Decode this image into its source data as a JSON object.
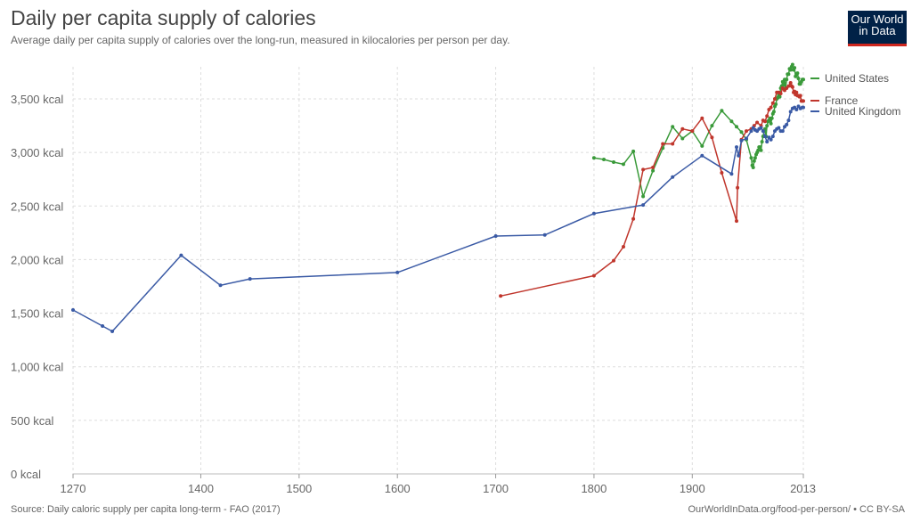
{
  "header": {
    "title": "Daily per capita supply of calories",
    "subtitle": "Average daily per capita supply of calories over the long-run, measured in kilocalories per person per day."
  },
  "logo": {
    "line1": "Our World",
    "line2": "in Data"
  },
  "footer": {
    "source": "Source: Daily caloric supply per capita long-term - FAO (2017)",
    "url": "OurWorldInData.org/food-per-person/ • CC BY-SA"
  },
  "chart_data": {
    "type": "line",
    "title": "Daily per capita supply of calories",
    "xlim": [
      1270,
      2013
    ],
    "ylim": [
      0,
      3800
    ],
    "x_ticks": [
      1270,
      1400,
      1500,
      1600,
      1700,
      1800,
      1900,
      2013
    ],
    "y_ticks": [
      0,
      500,
      1000,
      1500,
      2000,
      2500,
      3000,
      3500
    ],
    "y_tick_labels": [
      "0 kcal",
      "500 kcal",
      "1,000 kcal",
      "1,500 kcal",
      "2,000 kcal",
      "2,500 kcal",
      "3,000 kcal",
      "3,500 kcal"
    ],
    "grid": true,
    "legend_position": "right",
    "series": [
      {
        "name": "United States",
        "color": "#3a9a3a",
        "points": [
          [
            1800,
            2950
          ],
          [
            1810,
            2935
          ],
          [
            1820,
            2910
          ],
          [
            1830,
            2890
          ],
          [
            1840,
            3010
          ],
          [
            1850,
            2590
          ],
          [
            1860,
            2830
          ],
          [
            1870,
            3040
          ],
          [
            1880,
            3240
          ],
          [
            1890,
            3130
          ],
          [
            1900,
            3200
          ],
          [
            1910,
            3060
          ],
          [
            1920,
            3250
          ],
          [
            1930,
            3390
          ],
          [
            1940,
            3290
          ],
          [
            1945,
            3240
          ],
          [
            1950,
            3190
          ],
          [
            1955,
            3120
          ],
          [
            1960,
            2950
          ],
          [
            1961,
            2880
          ],
          [
            1962,
            2860
          ],
          [
            1963,
            2920
          ],
          [
            1964,
            2950
          ],
          [
            1965,
            2980
          ],
          [
            1966,
            3000
          ],
          [
            1967,
            3020
          ],
          [
            1968,
            3050
          ],
          [
            1969,
            3050
          ],
          [
            1970,
            3020
          ],
          [
            1971,
            3100
          ],
          [
            1972,
            3150
          ],
          [
            1973,
            3200
          ],
          [
            1974,
            3220
          ],
          [
            1975,
            3150
          ],
          [
            1976,
            3250
          ],
          [
            1977,
            3290
          ],
          [
            1978,
            3300
          ],
          [
            1979,
            3320
          ],
          [
            1980,
            3270
          ],
          [
            1981,
            3320
          ],
          [
            1982,
            3360
          ],
          [
            1983,
            3380
          ],
          [
            1984,
            3430
          ],
          [
            1985,
            3450
          ],
          [
            1986,
            3500
          ],
          [
            1987,
            3510
          ],
          [
            1988,
            3530
          ],
          [
            1989,
            3520
          ],
          [
            1990,
            3600
          ],
          [
            1991,
            3620
          ],
          [
            1992,
            3660
          ],
          [
            1993,
            3630
          ],
          [
            1994,
            3680
          ],
          [
            1995,
            3600
          ],
          [
            1996,
            3680
          ],
          [
            1997,
            3730
          ],
          [
            1998,
            3730
          ],
          [
            1999,
            3780
          ],
          [
            2000,
            3770
          ],
          [
            2001,
            3800
          ],
          [
            2002,
            3820
          ],
          [
            2003,
            3770
          ],
          [
            2004,
            3790
          ],
          [
            2005,
            3710
          ],
          [
            2006,
            3730
          ],
          [
            2007,
            3740
          ],
          [
            2008,
            3690
          ],
          [
            2009,
            3640
          ],
          [
            2010,
            3640
          ],
          [
            2011,
            3660
          ],
          [
            2012,
            3680
          ],
          [
            2013,
            3680
          ]
        ]
      },
      {
        "name": "France",
        "color": "#c0362c",
        "points": [
          [
            1705,
            1660
          ],
          [
            1800,
            1850
          ],
          [
            1820,
            1990
          ],
          [
            1830,
            2120
          ],
          [
            1840,
            2380
          ],
          [
            1850,
            2840
          ],
          [
            1860,
            2860
          ],
          [
            1870,
            3080
          ],
          [
            1880,
            3080
          ],
          [
            1890,
            3220
          ],
          [
            1900,
            3200
          ],
          [
            1910,
            3320
          ],
          [
            1920,
            3140
          ],
          [
            1930,
            2810
          ],
          [
            1945,
            2360
          ],
          [
            1946,
            2670
          ],
          [
            1950,
            3120
          ],
          [
            1955,
            3200
          ],
          [
            1960,
            3220
          ],
          [
            1963,
            3250
          ],
          [
            1966,
            3280
          ],
          [
            1970,
            3250
          ],
          [
            1972,
            3300
          ],
          [
            1974,
            3290
          ],
          [
            1976,
            3340
          ],
          [
            1978,
            3400
          ],
          [
            1980,
            3420
          ],
          [
            1982,
            3460
          ],
          [
            1984,
            3500
          ],
          [
            1986,
            3560
          ],
          [
            1988,
            3560
          ],
          [
            1990,
            3550
          ],
          [
            1992,
            3600
          ],
          [
            1994,
            3580
          ],
          [
            1996,
            3600
          ],
          [
            1998,
            3620
          ],
          [
            2000,
            3650
          ],
          [
            2001,
            3620
          ],
          [
            2002,
            3610
          ],
          [
            2003,
            3560
          ],
          [
            2004,
            3570
          ],
          [
            2005,
            3540
          ],
          [
            2006,
            3560
          ],
          [
            2007,
            3530
          ],
          [
            2008,
            3530
          ],
          [
            2009,
            3520
          ],
          [
            2010,
            3530
          ],
          [
            2011,
            3480
          ],
          [
            2012,
            3480
          ],
          [
            2013,
            3480
          ]
        ]
      },
      {
        "name": "United Kingdom",
        "color": "#3a5aa5",
        "points": [
          [
            1270,
            1530
          ],
          [
            1300,
            1380
          ],
          [
            1310,
            1330
          ],
          [
            1380,
            2040
          ],
          [
            1420,
            1760
          ],
          [
            1450,
            1820
          ],
          [
            1600,
            1880
          ],
          [
            1700,
            2220
          ],
          [
            1750,
            2230
          ],
          [
            1800,
            2430
          ],
          [
            1850,
            2510
          ],
          [
            1880,
            2770
          ],
          [
            1910,
            2970
          ],
          [
            1940,
            2800
          ],
          [
            1945,
            3050
          ],
          [
            1947,
            2970
          ],
          [
            1950,
            3110
          ],
          [
            1955,
            3130
          ],
          [
            1960,
            3200
          ],
          [
            1962,
            3230
          ],
          [
            1964,
            3210
          ],
          [
            1966,
            3200
          ],
          [
            1968,
            3220
          ],
          [
            1970,
            3230
          ],
          [
            1972,
            3200
          ],
          [
            1974,
            3150
          ],
          [
            1976,
            3100
          ],
          [
            1978,
            3140
          ],
          [
            1980,
            3120
          ],
          [
            1982,
            3150
          ],
          [
            1984,
            3200
          ],
          [
            1986,
            3220
          ],
          [
            1988,
            3230
          ],
          [
            1990,
            3200
          ],
          [
            1992,
            3200
          ],
          [
            1994,
            3240
          ],
          [
            1996,
            3260
          ],
          [
            1998,
            3300
          ],
          [
            2000,
            3380
          ],
          [
            2002,
            3410
          ],
          [
            2004,
            3420
          ],
          [
            2006,
            3400
          ],
          [
            2008,
            3430
          ],
          [
            2010,
            3410
          ],
          [
            2012,
            3420
          ],
          [
            2013,
            3420
          ]
        ]
      }
    ]
  }
}
